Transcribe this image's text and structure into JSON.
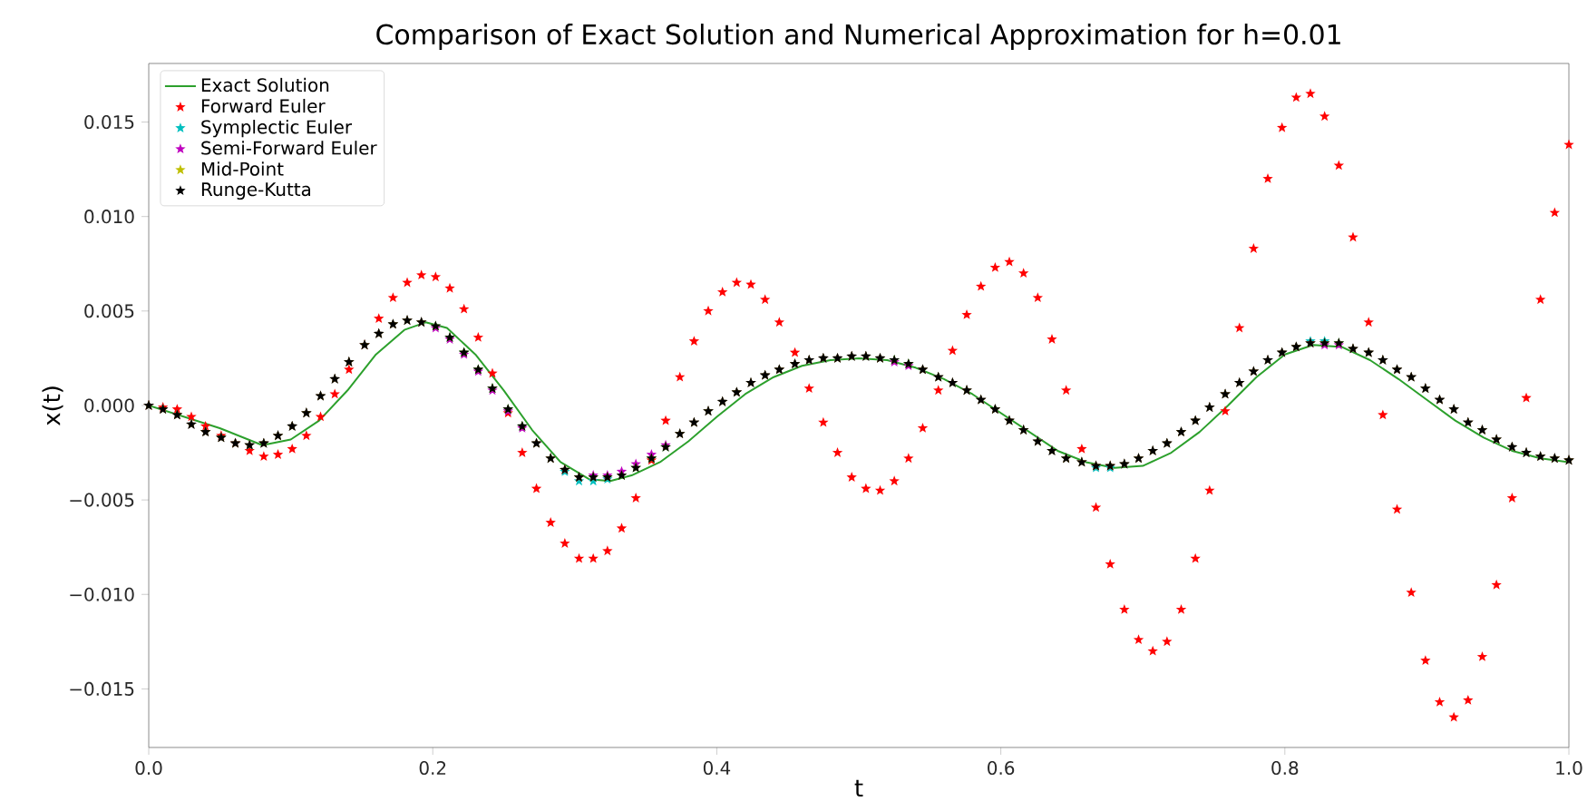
{
  "chart_data": {
    "type": "line",
    "title": "Comparison of Exact Solution and Numerical Approximation for h=0.01",
    "xlabel": "t",
    "ylabel": "x(t)",
    "xlim": [
      0,
      1
    ],
    "ylim": [
      -0.0181,
      0.0181
    ],
    "xticks": [
      {
        "value": 0,
        "label": "0.0"
      },
      {
        "value": 0.2,
        "label": "0.2"
      },
      {
        "value": 0.4,
        "label": "0.4"
      },
      {
        "value": 0.6,
        "label": "0.6"
      },
      {
        "value": 0.8,
        "label": "0.8"
      },
      {
        "value": 1,
        "label": "1.0"
      }
    ],
    "yticks": [
      {
        "value": -0.015,
        "label": "−0.015"
      },
      {
        "value": -0.01,
        "label": "−0.010"
      },
      {
        "value": -0.005,
        "label": "−0.005"
      },
      {
        "value": 0,
        "label": "0.000"
      },
      {
        "value": 0.005,
        "label": "0.005"
      },
      {
        "value": 0.01,
        "label": "0.010"
      },
      {
        "value": 0.015,
        "label": "0.015"
      }
    ],
    "grid": false,
    "legend": "top left",
    "x": [
      0,
      0.01,
      0.02,
      0.03,
      0.04,
      0.051,
      0.061,
      0.071,
      0.081,
      0.091,
      0.101,
      0.111,
      0.121,
      0.131,
      0.141,
      0.152,
      0.162,
      0.172,
      0.182,
      0.192,
      0.202,
      0.212,
      0.222,
      0.232,
      0.242,
      0.253,
      0.263,
      0.273,
      0.283,
      0.293,
      0.303,
      0.313,
      0.323,
      0.333,
      0.343,
      0.354,
      0.364,
      0.374,
      0.384,
      0.394,
      0.404,
      0.414,
      0.424,
      0.434,
      0.444,
      0.455,
      0.465,
      0.475,
      0.485,
      0.495,
      0.505,
      0.515,
      0.525,
      0.535,
      0.545,
      0.556,
      0.566,
      0.576,
      0.586,
      0.596,
      0.606,
      0.616,
      0.626,
      0.636,
      0.646,
      0.657,
      0.667,
      0.677,
      0.687,
      0.697,
      0.707,
      0.717,
      0.727,
      0.737,
      0.747,
      0.758,
      0.768,
      0.778,
      0.788,
      0.798,
      0.808,
      0.818,
      0.828,
      0.838,
      0.848,
      0.859,
      0.869,
      0.879,
      0.889,
      0.899,
      0.909,
      0.919,
      0.929,
      0.939,
      0.949,
      0.96,
      0.97,
      0.98,
      0.99,
      1.0
    ],
    "series": [
      {
        "name": "Exact Solution",
        "color": "#2ca02c",
        "marker": "none",
        "line_style": "solid",
        "x": [
          0,
          0.05,
          0.08,
          0.1,
          0.12,
          0.14,
          0.16,
          0.18,
          0.195,
          0.21,
          0.23,
          0.25,
          0.27,
          0.29,
          0.31,
          0.325,
          0.34,
          0.36,
          0.38,
          0.4,
          0.42,
          0.44,
          0.46,
          0.48,
          0.5,
          0.52,
          0.54,
          0.56,
          0.58,
          0.6,
          0.62,
          0.64,
          0.66,
          0.68,
          0.7,
          0.72,
          0.74,
          0.76,
          0.78,
          0.8,
          0.82,
          0.84,
          0.86,
          0.88,
          0.9,
          0.92,
          0.94,
          0.96,
          0.98,
          1.0
        ],
        "values": [
          0,
          -0.0012,
          -0.0021,
          -0.0018,
          -0.0008,
          0.0008,
          0.0027,
          0.004,
          0.0044,
          0.0041,
          0.0027,
          0.0008,
          -0.0013,
          -0.003,
          -0.0039,
          -0.004,
          -0.0037,
          -0.003,
          -0.0019,
          -0.0006,
          0.0006,
          0.0015,
          0.0021,
          0.0024,
          0.0025,
          0.0024,
          0.002,
          0.0014,
          0.0006,
          -0.0004,
          -0.0014,
          -0.0024,
          -0.003,
          -0.0033,
          -0.0032,
          -0.0025,
          -0.0014,
          0,
          0.0015,
          0.0027,
          0.0032,
          0.0031,
          0.0024,
          0.0014,
          0.0003,
          -0.0008,
          -0.0017,
          -0.0024,
          -0.0028,
          -0.003
        ]
      },
      {
        "name": "Forward Euler",
        "type": "scatter",
        "color": "#ff0000",
        "marker": "star",
        "values": [
          0,
          -0.0001,
          -0.0002,
          -0.0006,
          -0.0011,
          -0.0016,
          -0.002,
          -0.0024,
          -0.0027,
          -0.0026,
          -0.0023,
          -0.0016,
          -0.0006,
          0.0006,
          0.0019,
          0.0032,
          0.0046,
          0.0057,
          0.0065,
          0.0069,
          0.0068,
          0.0062,
          0.0051,
          0.0036,
          0.0017,
          -0.0004,
          -0.0025,
          -0.0044,
          -0.0062,
          -0.0073,
          -0.0081,
          -0.0081,
          -0.0077,
          -0.0065,
          -0.0049,
          -0.0029,
          -0.0008,
          0.0015,
          0.0034,
          0.005,
          0.006,
          0.0065,
          0.0064,
          0.0056,
          0.0044,
          0.0028,
          0.0009,
          -0.0009,
          -0.0025,
          -0.0038,
          -0.0044,
          -0.0045,
          -0.004,
          -0.0028,
          -0.0012,
          0.0008,
          0.0029,
          0.0048,
          0.0063,
          0.0073,
          0.0076,
          0.007,
          0.0057,
          0.0035,
          0.0008,
          -0.0023,
          -0.0054,
          -0.0084,
          -0.0108,
          -0.0124,
          -0.013,
          -0.0125,
          -0.0108,
          -0.0081,
          -0.0045,
          -0.0003,
          0.0041,
          0.0083,
          0.012,
          0.0147,
          0.0163,
          0.0165,
          0.0153,
          0.0127,
          0.0089,
          0.0044,
          -0.0005,
          -0.0055,
          -0.0099,
          -0.0135,
          -0.0157,
          -0.0165,
          -0.0156,
          -0.0133,
          -0.0095,
          -0.0049,
          0.0004,
          0.0056,
          0.0102,
          0.0138
        ]
      },
      {
        "name": "Symplectic Euler",
        "type": "scatter",
        "color": "#00bfbf",
        "marker": "star",
        "values": [
          0,
          -0.0002,
          -0.0005,
          -0.001,
          -0.0014,
          -0.0017,
          -0.002,
          -0.0021,
          -0.002,
          -0.0016,
          -0.0011,
          -0.0004,
          0.0005,
          0.0014,
          0.0023,
          0.0032,
          0.0038,
          0.0043,
          0.0045,
          0.0044,
          0.0042,
          0.0036,
          0.0028,
          0.0019,
          0.0009,
          -0.0002,
          -0.0011,
          -0.002,
          -0.0028,
          -0.0035,
          -0.004,
          -0.004,
          -0.0039,
          -0.0037,
          -0.0033,
          -0.0028,
          -0.0022,
          -0.0015,
          -0.0009,
          -0.0003,
          0.0002,
          0.0007,
          0.0012,
          0.0016,
          0.0019,
          0.0022,
          0.0024,
          0.0025,
          0.0025,
          0.0026,
          0.0026,
          0.0025,
          0.0024,
          0.0022,
          0.0019,
          0.0015,
          0.0012,
          0.0008,
          0.0003,
          -0.0002,
          -0.0008,
          -0.0013,
          -0.0019,
          -0.0024,
          -0.0028,
          -0.003,
          -0.0033,
          -0.0033,
          -0.0031,
          -0.0028,
          -0.0024,
          -0.002,
          -0.0014,
          -0.0008,
          -0.0001,
          0.0006,
          0.0012,
          0.0018,
          0.0024,
          0.0028,
          0.0031,
          0.0034,
          0.0034,
          0.0033,
          0.003,
          0.0028,
          0.0024,
          0.0019,
          0.0015,
          0.0009,
          0.0003,
          -0.0002,
          -0.0009,
          -0.0013,
          -0.0018,
          -0.0022,
          -0.0025,
          -0.0027,
          -0.0028,
          -0.0029
        ]
      },
      {
        "name": "Semi-Forward Euler",
        "type": "scatter",
        "color": "#bf00bf",
        "marker": "star",
        "values": [
          0,
          -0.0002,
          -0.0005,
          -0.001,
          -0.0014,
          -0.0017,
          -0.002,
          -0.0021,
          -0.002,
          -0.0016,
          -0.0011,
          -0.0004,
          0.0005,
          0.0014,
          0.0023,
          0.0032,
          0.0038,
          0.0043,
          0.0045,
          0.0044,
          0.0041,
          0.0035,
          0.0027,
          0.0018,
          0.0008,
          -0.0003,
          -0.0012,
          -0.002,
          -0.0028,
          -0.0034,
          -0.0038,
          -0.0037,
          -0.0037,
          -0.0035,
          -0.0031,
          -0.0026,
          -0.0021,
          -0.0015,
          -0.0009,
          -0.0003,
          0.0002,
          0.0007,
          0.0012,
          0.0016,
          0.0019,
          0.0022,
          0.0024,
          0.0025,
          0.0025,
          0.0026,
          0.0026,
          0.0025,
          0.0023,
          0.0021,
          0.0019,
          0.0015,
          0.0012,
          0.0008,
          0.0003,
          -0.0002,
          -0.0008,
          -0.0013,
          -0.0019,
          -0.0024,
          -0.0028,
          -0.003,
          -0.0032,
          -0.0032,
          -0.0031,
          -0.0028,
          -0.0024,
          -0.002,
          -0.0014,
          -0.0008,
          -0.0001,
          0.0006,
          0.0012,
          0.0018,
          0.0024,
          0.0028,
          0.0031,
          0.0033,
          0.0032,
          0.0032,
          0.003,
          0.0028,
          0.0024,
          0.0019,
          0.0015,
          0.0009,
          0.0003,
          -0.0002,
          -0.0009,
          -0.0013,
          -0.0018,
          -0.0022,
          -0.0025,
          -0.0027,
          -0.0028,
          -0.0029
        ]
      },
      {
        "name": "Mid-Point",
        "type": "scatter",
        "color": "#bfbf00",
        "marker": "star",
        "values": [
          0,
          -0.0002,
          -0.0005,
          -0.001,
          -0.0014,
          -0.0017,
          -0.002,
          -0.0021,
          -0.002,
          -0.0016,
          -0.0011,
          -0.0004,
          0.0005,
          0.0014,
          0.0023,
          0.0032,
          0.0038,
          0.0043,
          0.0045,
          0.0044,
          0.0042,
          0.0036,
          0.0028,
          0.0019,
          0.0009,
          -0.0002,
          -0.0011,
          -0.002,
          -0.0028,
          -0.0034,
          -0.0038,
          -0.0038,
          -0.0038,
          -0.0037,
          -0.0033,
          -0.0028,
          -0.0022,
          -0.0015,
          -0.0009,
          -0.0003,
          0.0002,
          0.0007,
          0.0012,
          0.0016,
          0.0019,
          0.0022,
          0.0024,
          0.0025,
          0.0025,
          0.0026,
          0.0026,
          0.0025,
          0.0024,
          0.0022,
          0.0019,
          0.0015,
          0.0012,
          0.0008,
          0.0003,
          -0.0002,
          -0.0008,
          -0.0013,
          -0.0019,
          -0.0024,
          -0.0028,
          -0.003,
          -0.0032,
          -0.0032,
          -0.0031,
          -0.0028,
          -0.0024,
          -0.002,
          -0.0014,
          -0.0008,
          -0.0001,
          0.0006,
          0.0012,
          0.0018,
          0.0024,
          0.0028,
          0.0031,
          0.0033,
          0.0033,
          0.0033,
          0.003,
          0.0028,
          0.0024,
          0.0019,
          0.0015,
          0.0009,
          0.0003,
          -0.0002,
          -0.0009,
          -0.0013,
          -0.0018,
          -0.0022,
          -0.0025,
          -0.0027,
          -0.0028,
          -0.0029
        ]
      },
      {
        "name": "Runge-Kutta",
        "type": "scatter",
        "color": "#000000",
        "marker": "star",
        "values": [
          0,
          -0.0002,
          -0.0005,
          -0.001,
          -0.0014,
          -0.0017,
          -0.002,
          -0.0021,
          -0.002,
          -0.0016,
          -0.0011,
          -0.0004,
          0.0005,
          0.0014,
          0.0023,
          0.0032,
          0.0038,
          0.0043,
          0.0045,
          0.0044,
          0.0042,
          0.0036,
          0.0028,
          0.0019,
          0.0009,
          -0.0002,
          -0.0011,
          -0.002,
          -0.0028,
          -0.0034,
          -0.0038,
          -0.0038,
          -0.0038,
          -0.0037,
          -0.0033,
          -0.0028,
          -0.0022,
          -0.0015,
          -0.0009,
          -0.0003,
          0.0002,
          0.0007,
          0.0012,
          0.0016,
          0.0019,
          0.0022,
          0.0024,
          0.0025,
          0.0025,
          0.0026,
          0.0026,
          0.0025,
          0.0024,
          0.0022,
          0.0019,
          0.0015,
          0.0012,
          0.0008,
          0.0003,
          -0.0002,
          -0.0008,
          -0.0013,
          -0.0019,
          -0.0024,
          -0.0028,
          -0.003,
          -0.0032,
          -0.0032,
          -0.0031,
          -0.0028,
          -0.0024,
          -0.002,
          -0.0014,
          -0.0008,
          -0.0001,
          0.0006,
          0.0012,
          0.0018,
          0.0024,
          0.0028,
          0.0031,
          0.0033,
          0.0033,
          0.0033,
          0.003,
          0.0028,
          0.0024,
          0.0019,
          0.0015,
          0.0009,
          0.0003,
          -0.0002,
          -0.0009,
          -0.0013,
          -0.0018,
          -0.0022,
          -0.0025,
          -0.0027,
          -0.0028,
          -0.0029
        ]
      }
    ]
  }
}
